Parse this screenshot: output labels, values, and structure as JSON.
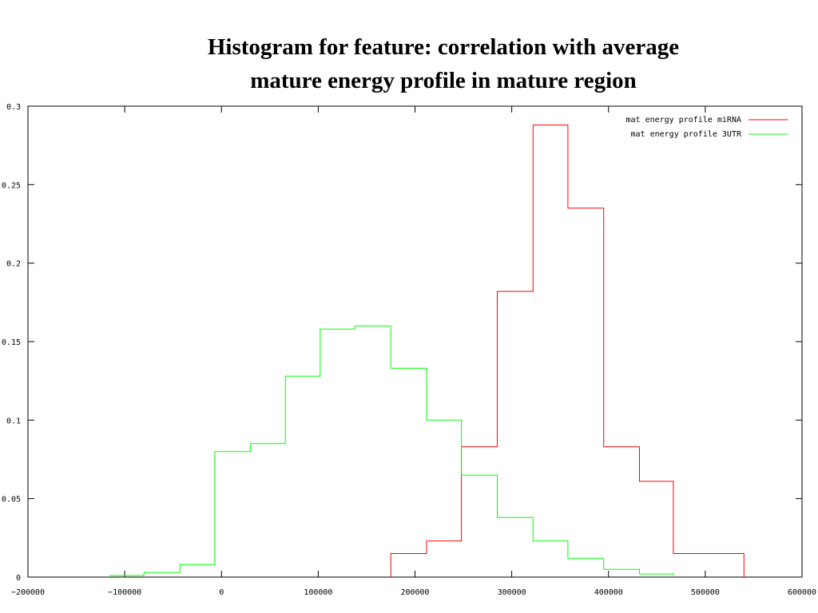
{
  "chart_data": {
    "type": "line",
    "title_lines": [
      "Histogram for feature: correlation with average",
      "mature energy profile in mature region"
    ],
    "xlabel": "",
    "ylabel": "",
    "xlim": [
      -200000,
      600000
    ],
    "ylim": [
      0,
      0.3
    ],
    "x_ticks": [
      {
        "value": -200000,
        "label": "-200000"
      },
      {
        "value": -100000,
        "label": "-100000"
      },
      {
        "value": 0,
        "label": "0"
      },
      {
        "value": 100000,
        "label": "100000"
      },
      {
        "value": 200000,
        "label": "200000"
      },
      {
        "value": 300000,
        "label": "300000"
      },
      {
        "value": 400000,
        "label": "400000"
      },
      {
        "value": 500000,
        "label": "500000"
      },
      {
        "value": 600000,
        "label": "600000"
      }
    ],
    "y_ticks": [
      {
        "value": 0,
        "label": "0"
      },
      {
        "value": 0.05,
        "label": "0.05"
      },
      {
        "value": 0.1,
        "label": "0.1"
      },
      {
        "value": 0.15,
        "label": "0.15"
      },
      {
        "value": 0.2,
        "label": "0.2"
      },
      {
        "value": 0.25,
        "label": "0.25"
      },
      {
        "value": 0.3,
        "label": "0.3"
      }
    ],
    "grid": false,
    "legend_position": "top-right",
    "series": [
      {
        "name": "mat energy profile miRNA",
        "color": "#ff0000",
        "x": [
          175000,
          212000,
          248000,
          285000,
          322000,
          358000,
          395000,
          432000,
          467000,
          540000
        ],
        "y": [
          0.015,
          0.023,
          0.083,
          0.182,
          0.288,
          0.235,
          0.083,
          0.061,
          0.015,
          0.0
        ]
      },
      {
        "name": "mat energy profile 3UTR",
        "color": "#00ff00",
        "x": [
          -115000,
          -80000,
          -43000,
          -7000,
          30000,
          66000,
          102000,
          138000,
          175000,
          212000,
          248000,
          285000,
          322000,
          358000,
          395000,
          432000,
          467000
        ],
        "y": [
          0.001,
          0.003,
          0.008,
          0.08,
          0.085,
          0.128,
          0.158,
          0.16,
          0.133,
          0.1,
          0.065,
          0.038,
          0.023,
          0.012,
          0.005,
          0.002,
          0.001
        ]
      }
    ]
  }
}
